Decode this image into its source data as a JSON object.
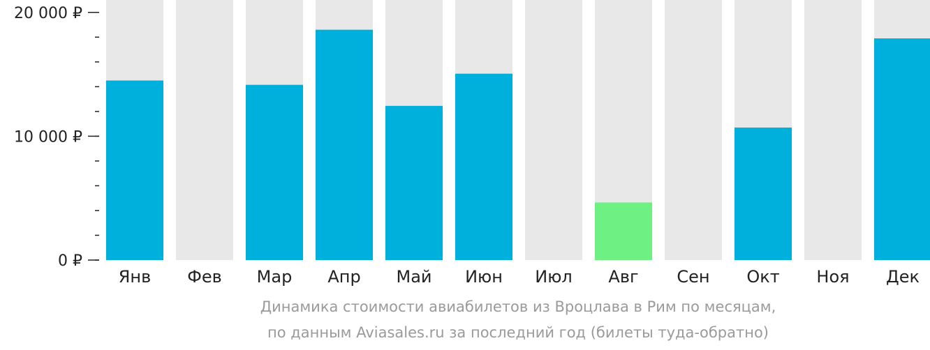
{
  "chart_data": {
    "type": "bar",
    "categories": [
      "Янв",
      "Фев",
      "Мар",
      "Апр",
      "Май",
      "Июн",
      "Июл",
      "Авг",
      "Сен",
      "Окт",
      "Ноя",
      "Дек"
    ],
    "values": [
      14500,
      null,
      14150,
      18600,
      12450,
      15050,
      null,
      4650,
      null,
      10700,
      null,
      17900
    ],
    "ylim": [
      0,
      21000
    ],
    "y_ticks": [
      {
        "value": 0,
        "label": "0 ₽"
      },
      {
        "value": 10000,
        "label": "10 000 ₽"
      },
      {
        "value": 20000,
        "label": "20 000 ₽"
      }
    ],
    "highlight_index": 7,
    "colors": {
      "bar": "#00b0dc",
      "highlight": "#6ef083",
      "background_column": "#e8e8e8",
      "axis": "#222222",
      "caption": "#9a9a9a"
    },
    "grid": false
  },
  "caption": {
    "line1": "Динамика стоимости авиабилетов из Вроцлава в Рим по месяцам,",
    "line2": "по данным Aviasales.ru за последний год (билеты туда-обратно)"
  }
}
